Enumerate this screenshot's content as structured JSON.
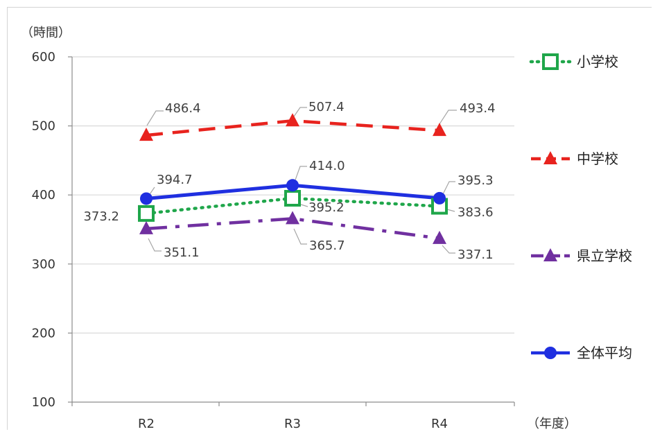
{
  "chart_data": {
    "type": "line",
    "y_unit_label": "（時間）",
    "x_unit_label": "（年度）",
    "categories": [
      "R2",
      "R3",
      "R4"
    ],
    "ylim": [
      100,
      600
    ],
    "yticks": [
      100,
      200,
      300,
      400,
      500,
      600
    ],
    "grid": true,
    "legend_position": "right",
    "series": [
      {
        "name": "小学校",
        "values": [
          373.2,
          395.2,
          383.6
        ],
        "color": "#1fa64a",
        "line_style": "dotted",
        "marker": "square"
      },
      {
        "name": "中学校",
        "values": [
          486.4,
          507.4,
          493.4
        ],
        "color": "#e8231e",
        "line_style": "dashed",
        "marker": "triangle"
      },
      {
        "name": "県立学校",
        "values": [
          351.1,
          365.7,
          337.1
        ],
        "color": "#7030a0",
        "line_style": "dash-dot",
        "marker": "triangle"
      },
      {
        "name": "全体平均",
        "values": [
          394.7,
          414.0,
          395.3
        ],
        "color": "#1f2fe0",
        "line_style": "solid",
        "marker": "circle"
      }
    ]
  }
}
